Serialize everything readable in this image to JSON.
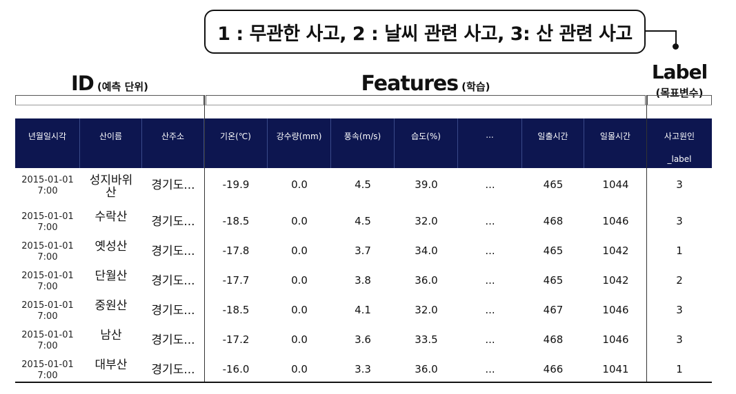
{
  "legend": "1 : 무관한 사고, 2 : 날씨 관련 사고, 3: 산 관련 사고",
  "groups": {
    "id": {
      "title": "ID",
      "sub": "(예측 단위)"
    },
    "features": {
      "title": "Features",
      "sub": "(학습)"
    },
    "label": {
      "title": "Label",
      "sub": "(목표변수)"
    }
  },
  "table": {
    "headers": [
      {
        "main": "년월일시각",
        "sub": ""
      },
      {
        "main": "산이름",
        "sub": ""
      },
      {
        "main": "산주소",
        "sub": ""
      },
      {
        "main": "기온(℃)",
        "sub": ""
      },
      {
        "main": "강수량(mm)",
        "sub": ""
      },
      {
        "main": "풍속(m/s)",
        "sub": ""
      },
      {
        "main": "습도(%)",
        "sub": ""
      },
      {
        "main": "...",
        "sub": ""
      },
      {
        "main": "일출시간",
        "sub": ""
      },
      {
        "main": "일몰시간",
        "sub": ""
      },
      {
        "main": "사고원인",
        "sub": "_label"
      }
    ],
    "rows": [
      {
        "date": "2015-01-01",
        "time": "7:00",
        "mountain": "성지바위\n산",
        "address": "경기도...",
        "temp": "-19.9",
        "rain": "0.0",
        "wind": "4.5",
        "humidity": "39.0",
        "etc": "...",
        "sunrise": "465",
        "sunset": "1044",
        "label": "3"
      },
      {
        "date": "2015-01-01",
        "time": "7:00",
        "mountain": "수락산",
        "address": "경기도...",
        "temp": "-18.5",
        "rain": "0.0",
        "wind": "4.5",
        "humidity": "32.0",
        "etc": "...",
        "sunrise": "468",
        "sunset": "1046",
        "label": "3"
      },
      {
        "date": "2015-01-01",
        "time": "7:00",
        "mountain": "옛성산",
        "address": "경기도...",
        "temp": "-17.8",
        "rain": "0.0",
        "wind": "3.7",
        "humidity": "34.0",
        "etc": "...",
        "sunrise": "465",
        "sunset": "1042",
        "label": "1"
      },
      {
        "date": "2015-01-01",
        "time": "7:00",
        "mountain": "단월산",
        "address": "경기도...",
        "temp": "-17.7",
        "rain": "0.0",
        "wind": "3.8",
        "humidity": "36.0",
        "etc": "...",
        "sunrise": "465",
        "sunset": "1042",
        "label": "2"
      },
      {
        "date": "2015-01-01",
        "time": "7:00",
        "mountain": "중원산",
        "address": "경기도...",
        "temp": "-18.5",
        "rain": "0.0",
        "wind": "4.1",
        "humidity": "32.0",
        "etc": "...",
        "sunrise": "467",
        "sunset": "1046",
        "label": "3"
      },
      {
        "date": "2015-01-01",
        "time": "7:00",
        "mountain": "남산",
        "address": "경기도...",
        "temp": "-17.2",
        "rain": "0.0",
        "wind": "3.6",
        "humidity": "33.5",
        "etc": "...",
        "sunrise": "468",
        "sunset": "1046",
        "label": "3"
      },
      {
        "date": "2015-01-01",
        "time": "7:00",
        "mountain": "대부산",
        "address": "경기도...",
        "temp": "-16.0",
        "rain": "0.0",
        "wind": "3.3",
        "humidity": "36.0",
        "etc": "...",
        "sunrise": "466",
        "sunset": "1041",
        "label": "1"
      }
    ]
  },
  "colors": {
    "header_bg": "#0d1650",
    "header_text": "#ffffff"
  }
}
